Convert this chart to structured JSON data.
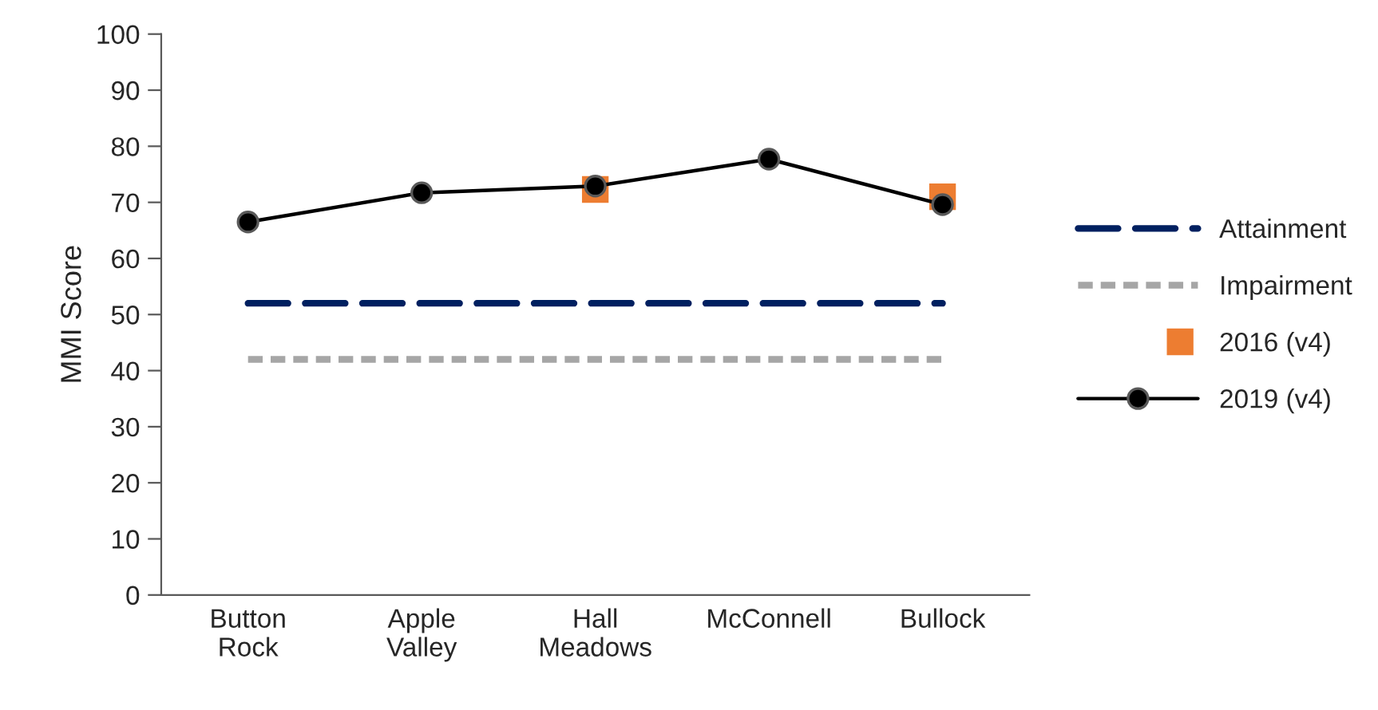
{
  "chart_data": {
    "type": "line",
    "ylabel": "MMI Score",
    "categories": [
      "Button Rock",
      "Apple Valley",
      "Hall Meadows",
      "McConnell",
      "Bullock"
    ],
    "ylim": [
      0,
      100
    ],
    "yticks": [
      0,
      10,
      20,
      30,
      40,
      50,
      60,
      70,
      80,
      90,
      100
    ],
    "grid": false,
    "legend": "right",
    "series": [
      {
        "name": "Attainment",
        "color": "#002060",
        "line_style": "dashed",
        "marker": "none",
        "values": [
          52,
          52,
          52,
          52,
          52
        ]
      },
      {
        "name": "Impairment",
        "color": "#a6a6a6",
        "line_style": "dotted",
        "marker": "none",
        "values": [
          42,
          42,
          42,
          42,
          42
        ]
      },
      {
        "name": "2016 (v4)",
        "type": "scatter",
        "color": "#ed7d31",
        "marker": "square",
        "values": [
          null,
          null,
          72.3,
          null,
          71
        ]
      },
      {
        "name": "2019 (v4)",
        "color": "#000000",
        "line_style": "solid",
        "marker": "circle",
        "values": [
          66.5,
          71.7,
          72.9,
          77.7,
          69.6
        ]
      }
    ]
  }
}
